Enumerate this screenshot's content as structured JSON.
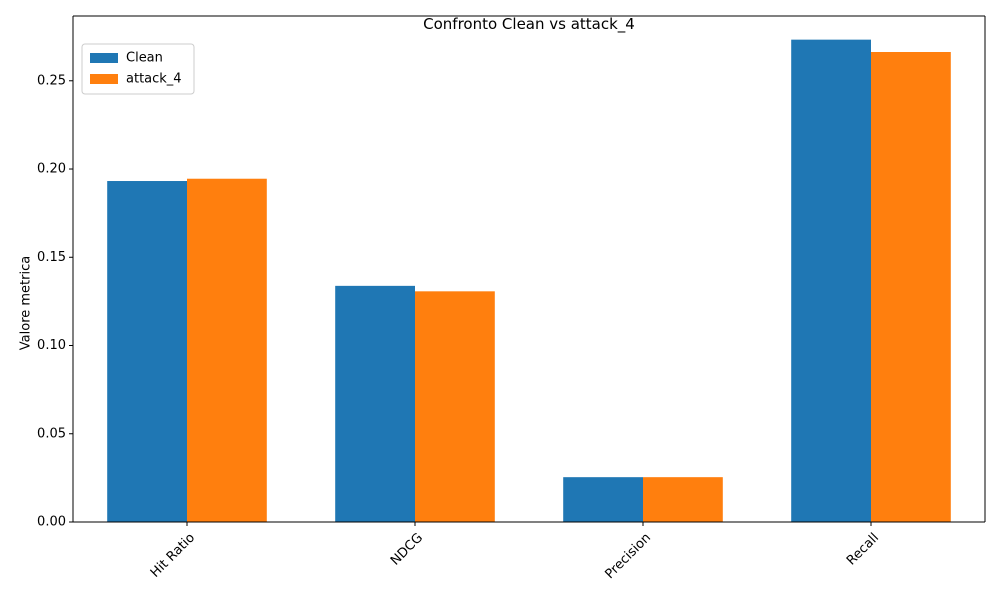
{
  "chart_data": {
    "type": "bar",
    "title": "Confronto Clean vs attack_4",
    "xlabel": "",
    "ylabel": "Valore metrica",
    "categories": [
      "Hit Ratio",
      "NDCG",
      "Precision",
      "Recall"
    ],
    "series": [
      {
        "name": "Clean",
        "color": "#1f77b4",
        "values": [
          0.1932,
          0.1338,
          0.0254,
          0.2733
        ]
      },
      {
        "name": "attack_4",
        "color": "#ff7f0e",
        "values": [
          0.1945,
          0.1307,
          0.0254,
          0.2663
        ]
      }
    ],
    "ylim": [
      0,
      0.2867
    ],
    "yticks": [
      "0.00",
      "0.05",
      "0.10",
      "0.15",
      "0.20",
      "0.25"
    ],
    "legend": "top-left",
    "grid": false
  }
}
